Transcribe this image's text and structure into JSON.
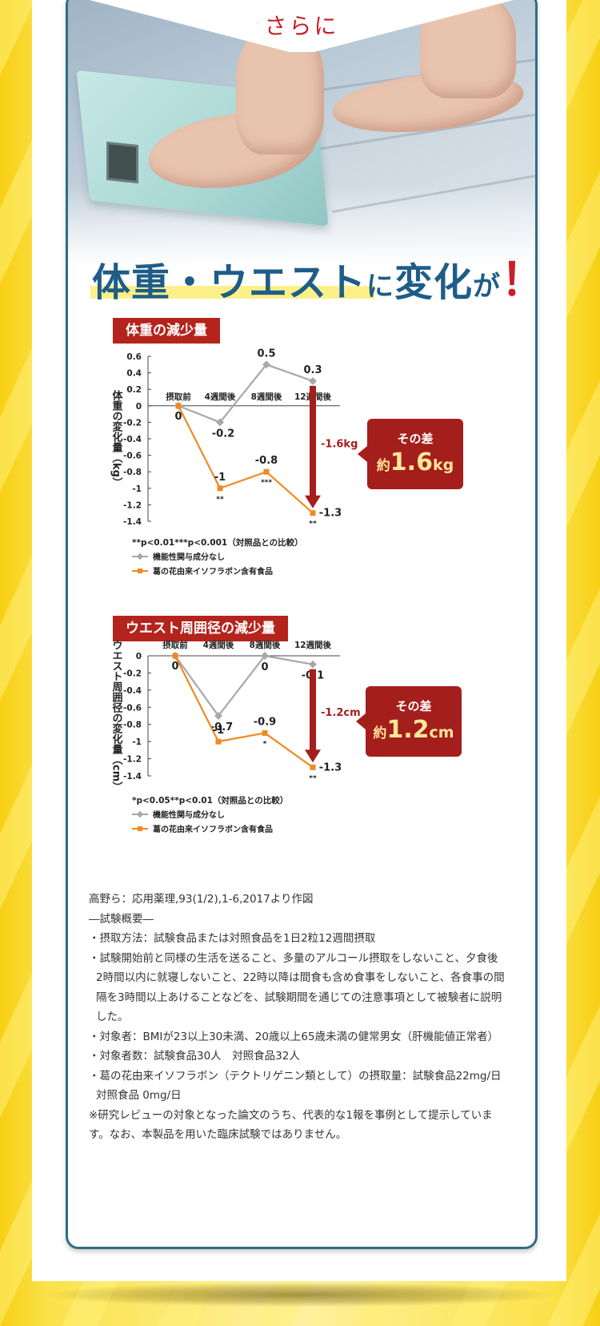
{
  "banner": {
    "text": "さらに"
  },
  "headline": {
    "part1": "体重・ウエスト",
    "part2": "に",
    "part3": "変化",
    "part4": "が",
    "part5": "！"
  },
  "colors": {
    "accent_red": "#b5231d",
    "headline_blue": "#1e5d87",
    "series_gray": "#a8a8a8",
    "series_orange": "#ef8a23",
    "arrow_red": "#a41e1c",
    "background_yellow": "#f8d21c"
  },
  "chart_data": [
    {
      "type": "line",
      "title": "体重の減少量",
      "ylabel": "体重の変化量（kg）",
      "categories": [
        "摂取前",
        "4週間後",
        "8週間後",
        "12週間後"
      ],
      "ylim": [
        -1.4,
        0.6
      ],
      "yticks": [
        "0.6",
        "0.4",
        "0.2",
        "0",
        "-0.2",
        "-0.4",
        "-0.6",
        "-0.8",
        "-1",
        "-1.2",
        "-1.4"
      ],
      "series": [
        {
          "name": "機能性関与成分なし",
          "values": [
            0,
            -0.2,
            0.5,
            0.3
          ],
          "labels": [
            "",
            "-0.2",
            "0.5",
            "0.3"
          ]
        },
        {
          "name": "葛の花由来イソフラボン含有食品",
          "values": [
            0,
            -1.0,
            -0.8,
            -1.3
          ],
          "labels": [
            "0",
            "-1",
            "-0.8",
            "-1.3"
          ],
          "sig": [
            "",
            "**",
            "***",
            "**"
          ]
        }
      ],
      "arrow_label": "-1.6kg",
      "note": "**p<0.01***p<0.001（対照品との比較）",
      "diff": {
        "label": "その差",
        "prefix": "約",
        "value": "1.6",
        "unit": "kg"
      },
      "grid": false,
      "legend_position": "bottom-left"
    },
    {
      "type": "line",
      "title": "ウエスト周囲径の減少量",
      "ylabel": "ウエスト周囲径の変化量（cm）",
      "categories": [
        "摂取前",
        "4週間後",
        "8週間後",
        "12週間後"
      ],
      "ylim": [
        -1.4,
        0
      ],
      "yticks": [
        "0",
        "-0.2",
        "-0.4",
        "-0.6",
        "-0.8",
        "-1",
        "-1.2",
        "-1.4"
      ],
      "series": [
        {
          "name": "機能性関与成分なし",
          "values": [
            0,
            -0.7,
            0,
            -0.1
          ],
          "labels": [
            "",
            "-0.7",
            "0",
            "-0.1"
          ]
        },
        {
          "name": "葛の花由来イソフラボン含有食品",
          "values": [
            0,
            -1.0,
            -0.9,
            -1.3
          ],
          "labels": [
            "0",
            "-1",
            "-0.9",
            "-1.3"
          ],
          "sig": [
            "",
            "",
            "*",
            "**"
          ]
        }
      ],
      "arrow_label": "-1.2cm",
      "note": "*p<0.05**p<0.01（対照品との比較）",
      "diff": {
        "label": "その差",
        "prefix": "約",
        "value": "1.2",
        "unit": "cm"
      },
      "grid": false,
      "legend_position": "bottom-left"
    }
  ],
  "notes": [
    "高野ら：応用薬理,93(1/2),1-6,2017より作図",
    "―試験概要―",
    "・摂取方法：試験食品または対照食品を1日2粒12週間摂取",
    "・試験開始前と同様の生活を送ること、多量のアルコール摂取をしないこと、夕食後2時間以内に就寝しないこと、22時以降は間食も含め食事をしないこと、各食事の間隔を3時間以上あけることなどを、試験期間を通じての注意事項として被験者に説明した。",
    "・対象者：BMIが23以上30未満、20歳以上65歳未満の健常男女（肝機能値正常者）",
    "・対象者数：試験食品30人　対照食品32人",
    "・葛の花由来イソフラボン（テクトリゲニン類として）の摂取量：試験食品22mg/日　対照食品 0mg/日",
    "※研究レビューの対象となった論文のうち、代表的な1報を事例として提示しています。なお、本製品を用いた臨床試験ではありません。"
  ]
}
